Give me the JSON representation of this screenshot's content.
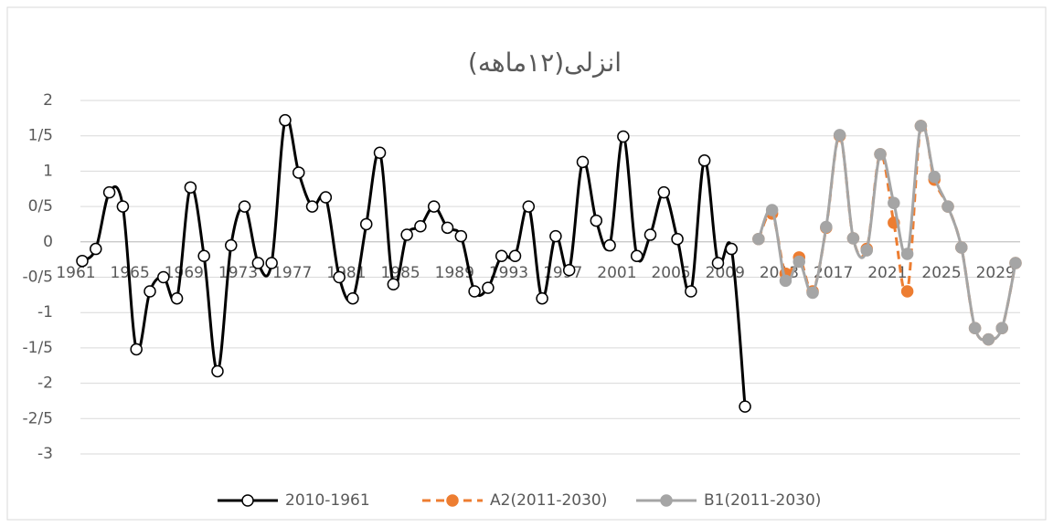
{
  "chart_data": {
    "type": "line",
    "title": "انزلی(۱۲ماهه)",
    "categories": [
      "1961",
      null,
      null,
      null,
      "1965",
      null,
      null,
      null,
      "1969",
      null,
      null,
      null,
      "1973",
      null,
      null,
      null,
      "1977",
      null,
      null,
      null,
      "1981",
      null,
      null,
      null,
      "1985",
      null,
      null,
      null,
      "1989",
      null,
      null,
      null,
      "1993",
      null,
      null,
      null,
      "1997",
      null,
      null,
      null,
      "2001",
      null,
      null,
      null,
      "2005",
      null,
      null,
      null,
      "2009",
      null,
      null,
      null,
      "2013",
      null,
      null,
      null,
      "2017",
      null,
      null,
      null,
      "2021",
      null,
      null,
      null,
      "2025",
      null,
      null,
      null,
      "2029",
      null
    ],
    "series": [
      {
        "name": "2010-1961",
        "color": "#000000",
        "values": [
          -0.27,
          -0.1,
          0.7,
          0.5,
          -1.52,
          -0.7,
          -0.5,
          -0.8,
          0.77,
          -0.2,
          -1.83,
          -0.05,
          0.5,
          -0.3,
          -0.3,
          1.72,
          0.98,
          0.5,
          0.63,
          -0.5,
          -0.8,
          0.25,
          1.26,
          -0.6,
          0.1,
          0.22,
          0.5,
          0.2,
          0.08,
          -0.7,
          -0.65,
          -0.2,
          -0.2,
          0.5,
          -0.8,
          0.08,
          -0.4,
          1.13,
          0.3,
          -0.05,
          1.49,
          -0.2,
          0.1,
          0.7,
          0.04,
          -0.7,
          1.15,
          -0.3,
          -0.1,
          -2.33,
          null,
          null,
          null,
          null,
          null,
          null,
          null,
          null,
          null,
          null,
          null,
          null,
          null,
          null,
          null,
          null,
          null,
          null,
          null,
          null
        ]
      },
      {
        "name": "A2(2011-2030)",
        "color": "#ed7d31",
        "values": [
          null,
          null,
          null,
          null,
          null,
          null,
          null,
          null,
          null,
          null,
          null,
          null,
          null,
          null,
          null,
          null,
          null,
          null,
          null,
          null,
          null,
          null,
          null,
          null,
          null,
          null,
          null,
          null,
          null,
          null,
          null,
          null,
          null,
          null,
          null,
          null,
          null,
          null,
          null,
          null,
          null,
          null,
          null,
          null,
          null,
          null,
          null,
          null,
          null,
          null,
          0.04,
          0.4,
          -0.45,
          -0.22,
          -0.7,
          0.2,
          1.5,
          0.05,
          -0.1,
          1.24,
          0.27,
          -0.7,
          1.64,
          0.88,
          0.5,
          -0.08,
          -1.22,
          -1.38,
          -1.22,
          -0.3
        ]
      },
      {
        "name": "B1(2011-2030)",
        "color": "#a5a5a5",
        "values": [
          null,
          null,
          null,
          null,
          null,
          null,
          null,
          null,
          null,
          null,
          null,
          null,
          null,
          null,
          null,
          null,
          null,
          null,
          null,
          null,
          null,
          null,
          null,
          null,
          null,
          null,
          null,
          null,
          null,
          null,
          null,
          null,
          null,
          null,
          null,
          null,
          null,
          null,
          null,
          null,
          null,
          null,
          null,
          null,
          null,
          null,
          null,
          null,
          null,
          null,
          0.04,
          0.45,
          -0.55,
          -0.28,
          -0.72,
          0.21,
          1.51,
          0.05,
          -0.12,
          1.24,
          0.55,
          -0.17,
          1.64,
          0.92,
          0.5,
          -0.08,
          -1.22,
          -1.38,
          -1.22,
          -0.3
        ]
      }
    ],
    "ylim": [
      -3,
      2
    ],
    "yticks": [
      2,
      {
        "value": 1.5,
        "label": "1/5"
      },
      1,
      {
        "value": 0.5,
        "label": "0/5"
      },
      0,
      {
        "value": -0.5,
        "label": "-0/5"
      },
      -1,
      {
        "value": -1.5,
        "label": "-1/5"
      },
      -2,
      {
        "value": -2.5,
        "label": "-2/5"
      },
      -3
    ],
    "grid": true,
    "legend": "bottom"
  }
}
